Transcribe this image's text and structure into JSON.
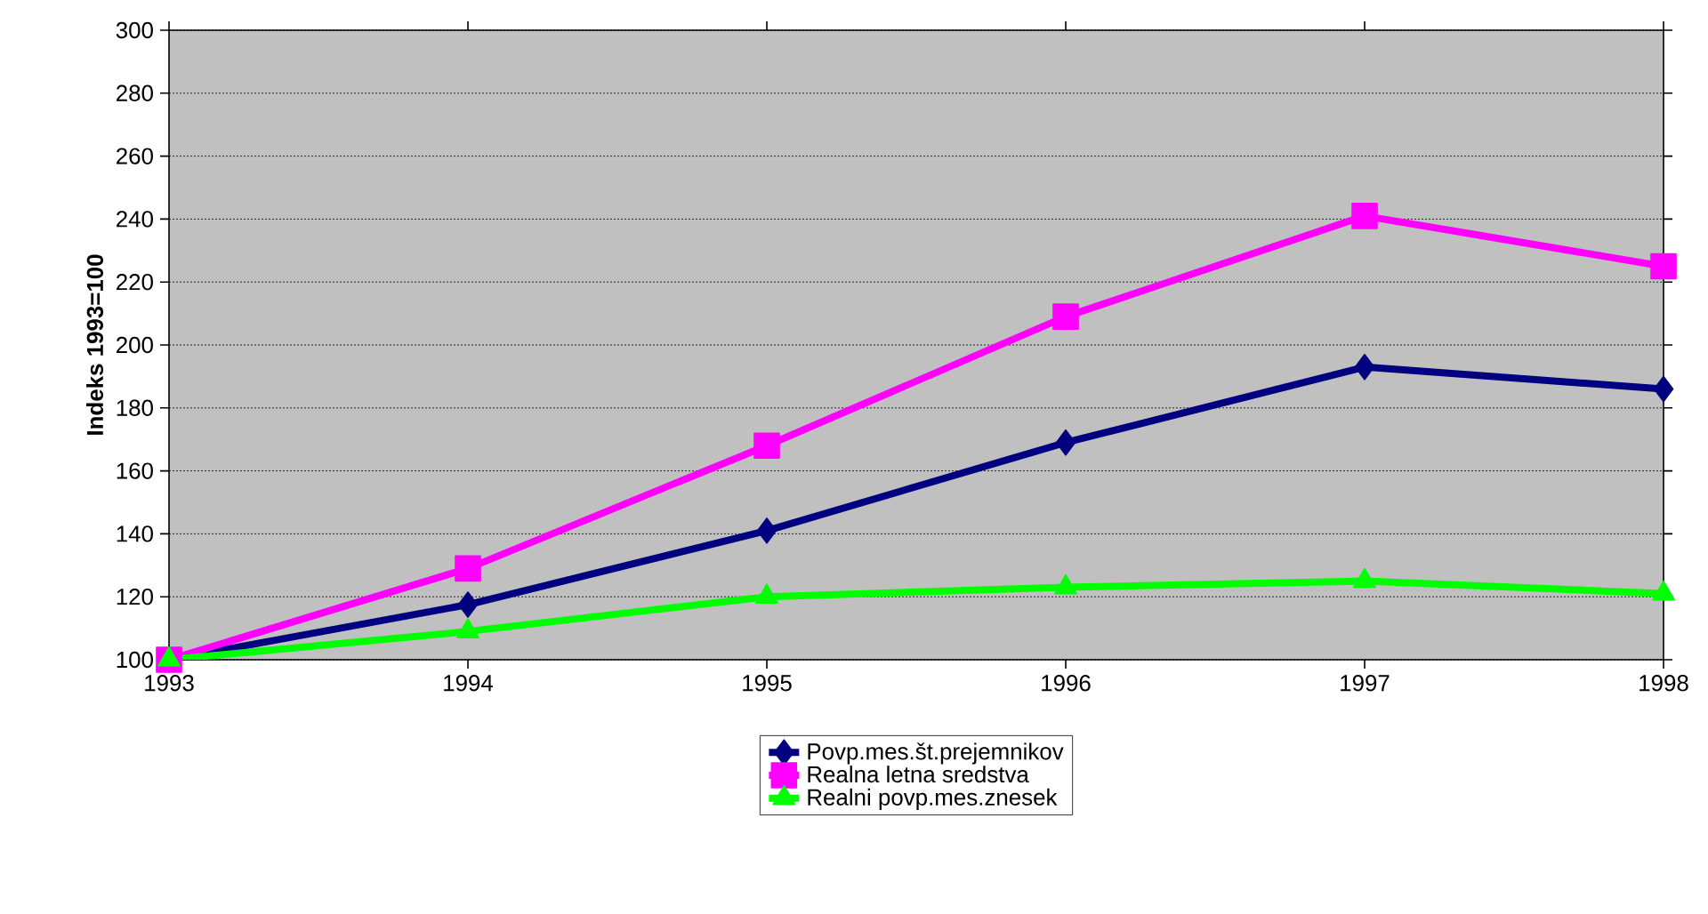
{
  "chart_data": {
    "type": "line",
    "ylabel": "Indeks 1993=100",
    "categories": [
      "1993",
      "1994",
      "1995",
      "1996",
      "1997",
      "1998"
    ],
    "series": [
      {
        "name": "Povp.mes.št.prejemnikov",
        "color": "#000080",
        "marker": "diamond",
        "values": [
          100,
          117.5,
          141,
          169,
          193,
          186
        ]
      },
      {
        "name": "Realna letna sredstva",
        "color": "#ff00ff",
        "marker": "square",
        "values": [
          100,
          129,
          168,
          209,
          241,
          225
        ]
      },
      {
        "name": "Realni povp.mes.znesek",
        "color": "#00ff00",
        "marker": "triangle",
        "values": [
          100,
          109,
          120,
          123,
          125,
          121
        ]
      }
    ],
    "ylim": [
      100,
      300
    ],
    "yticks": [
      100,
      120,
      140,
      160,
      180,
      200,
      220,
      240,
      260,
      280,
      300
    ],
    "grid": "y",
    "legend": "bottom",
    "line_style": "solid"
  }
}
